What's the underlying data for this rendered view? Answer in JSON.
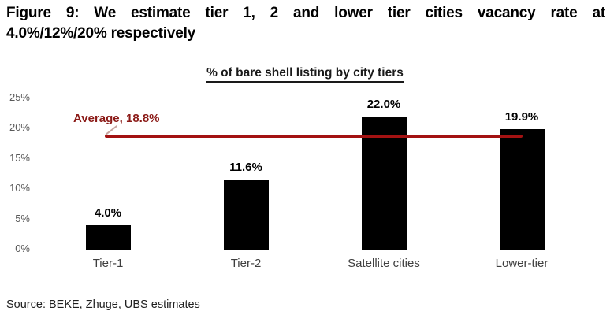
{
  "figure": {
    "title_line1": "Figure 9: We estimate tier 1, 2 and lower tier cities vacancy rate at",
    "title_line2": "4.0%/12%/20% respectively",
    "source": "Source: BEKE, Zhuge, UBS estimates"
  },
  "chart_data": {
    "type": "bar",
    "title": "% of bare shell listing by city tiers",
    "categories": [
      "Tier-1",
      "Tier-2",
      "Satellite cities",
      "Lower-tier"
    ],
    "values": [
      4.0,
      11.6,
      22.0,
      19.9
    ],
    "data_labels": [
      "4.0%",
      "11.6%",
      "22.0%",
      "19.9%"
    ],
    "y_ticks": [
      "0%",
      "5%",
      "10%",
      "15%",
      "20%",
      "25%"
    ],
    "ylim": [
      0,
      25
    ],
    "grid": false,
    "legend": false,
    "average": {
      "value": 18.8,
      "label": "Average, 18.8%"
    },
    "colors": {
      "bar": "#000000",
      "average_line": "#a31212",
      "average_label": "#8b1a17",
      "tick_label": "#595959",
      "category_label": "#3f3f3f"
    }
  }
}
